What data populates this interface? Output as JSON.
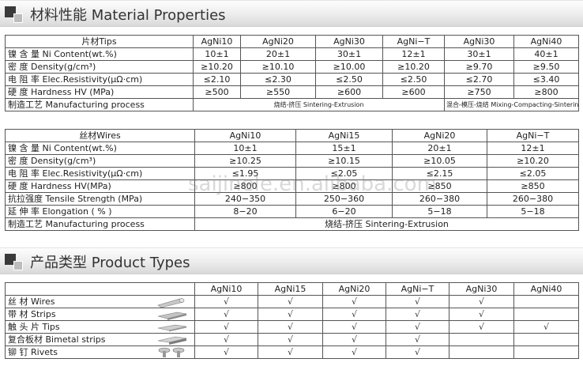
{
  "section1": {
    "title": "材料性能 Material Properties"
  },
  "tips": {
    "header_label": "片材Tips",
    "columns": [
      "AgNi10",
      "AgNi20",
      "AgNi30",
      "AgNi−T",
      "AgNi30",
      "AgNi40"
    ],
    "rows": [
      {
        "label": "镍 含 量 Ni Content(wt.%)",
        "values": [
          "10±1",
          "20±1",
          "30±1",
          "12±1",
          "30±1",
          "40±1"
        ]
      },
      {
        "label": "密    度 Density(g/cm³)",
        "values": [
          "≥10.20",
          "≥10.10",
          "≥10.00",
          "≥10.20",
          "≥9.70",
          "≥9.50"
        ]
      },
      {
        "label": "电 阻 率 Elec.Resistivity(μΩ·cm)",
        "values": [
          "≤2.10",
          "≤2.30",
          "≤2.50",
          "≤2.50",
          "≤2.70",
          "≤3.40"
        ]
      },
      {
        "label": "硬    度 Hardness HV (MPa)",
        "values": [
          "≥500",
          "≥550",
          "≥600",
          "≥600",
          "≥750",
          "≥800"
        ]
      }
    ],
    "mfg_label": "制造工艺 Manufacturing process",
    "mfg_left": "烧结-挤压 Sintering-Extrusion",
    "mfg_right": "混合-模压-烧结 Mixing-Compacting-Sintering"
  },
  "wires": {
    "header_label": "丝材Wires",
    "columns": [
      "AgNi10",
      "AgNi15",
      "AgNi20",
      "AgNi−T"
    ],
    "rows": [
      {
        "label": "镍 含 量 Ni Content(wt.%)",
        "values": [
          "10±1",
          "15±1",
          "20±1",
          "12±1"
        ]
      },
      {
        "label": "密    度 Density(g/cm³)",
        "values": [
          "≥10.25",
          "≥10.15",
          "≥10.05",
          "≥10.20"
        ]
      },
      {
        "label": "电 阻 率 Elec.Resistivity(μΩ·cm)",
        "values": [
          "≤1.95",
          "≤2.05",
          "≤2.15",
          "≤2.05"
        ]
      },
      {
        "label": "硬    度 Hardness HV(MPa)",
        "values": [
          "≥800",
          "≥800",
          "≥850",
          "≥850"
        ]
      },
      {
        "label": "抗拉强度 Tensile Strength (MPa)",
        "values": [
          "240−350",
          "250−360",
          "260−380",
          "260−380"
        ]
      },
      {
        "label": "延 伸 率 Elongation ( % )",
        "values": [
          "8−20",
          "6−20",
          "5−18",
          "5−18"
        ]
      }
    ],
    "mfg_label": "制造工艺 Manufacturing process",
    "mfg_value": "烧结-挤压 Sintering-Extrusion"
  },
  "watermark": "saijinele.en.alibaba.com",
  "section2": {
    "title": "产品类型 Product Types"
  },
  "products": {
    "columns": [
      "AgNi10",
      "AgNi15",
      "AgNi20",
      "AgNi−T",
      "AgNi30",
      "AgNi40"
    ],
    "check": "√",
    "rows": [
      {
        "label": "丝    材 Wires",
        "icon": "wire-icon",
        "checks": [
          true,
          true,
          true,
          true,
          true,
          false
        ]
      },
      {
        "label": "带    材 Strips",
        "icon": "strip-icon",
        "checks": [
          true,
          true,
          true,
          true,
          true,
          false
        ]
      },
      {
        "label": "触 头 片 Tips",
        "icon": "tip-icon",
        "checks": [
          true,
          true,
          true,
          true,
          true,
          true
        ]
      },
      {
        "label": "复合板材 Bimetal strips",
        "icon": "bimetal-strip-icon",
        "checks": [
          true,
          true,
          true,
          true,
          false,
          false
        ]
      },
      {
        "label": "铆    钉 Rivets",
        "icon": "rivet-icon",
        "checks": [
          true,
          true,
          true,
          true,
          false,
          false
        ]
      }
    ]
  }
}
